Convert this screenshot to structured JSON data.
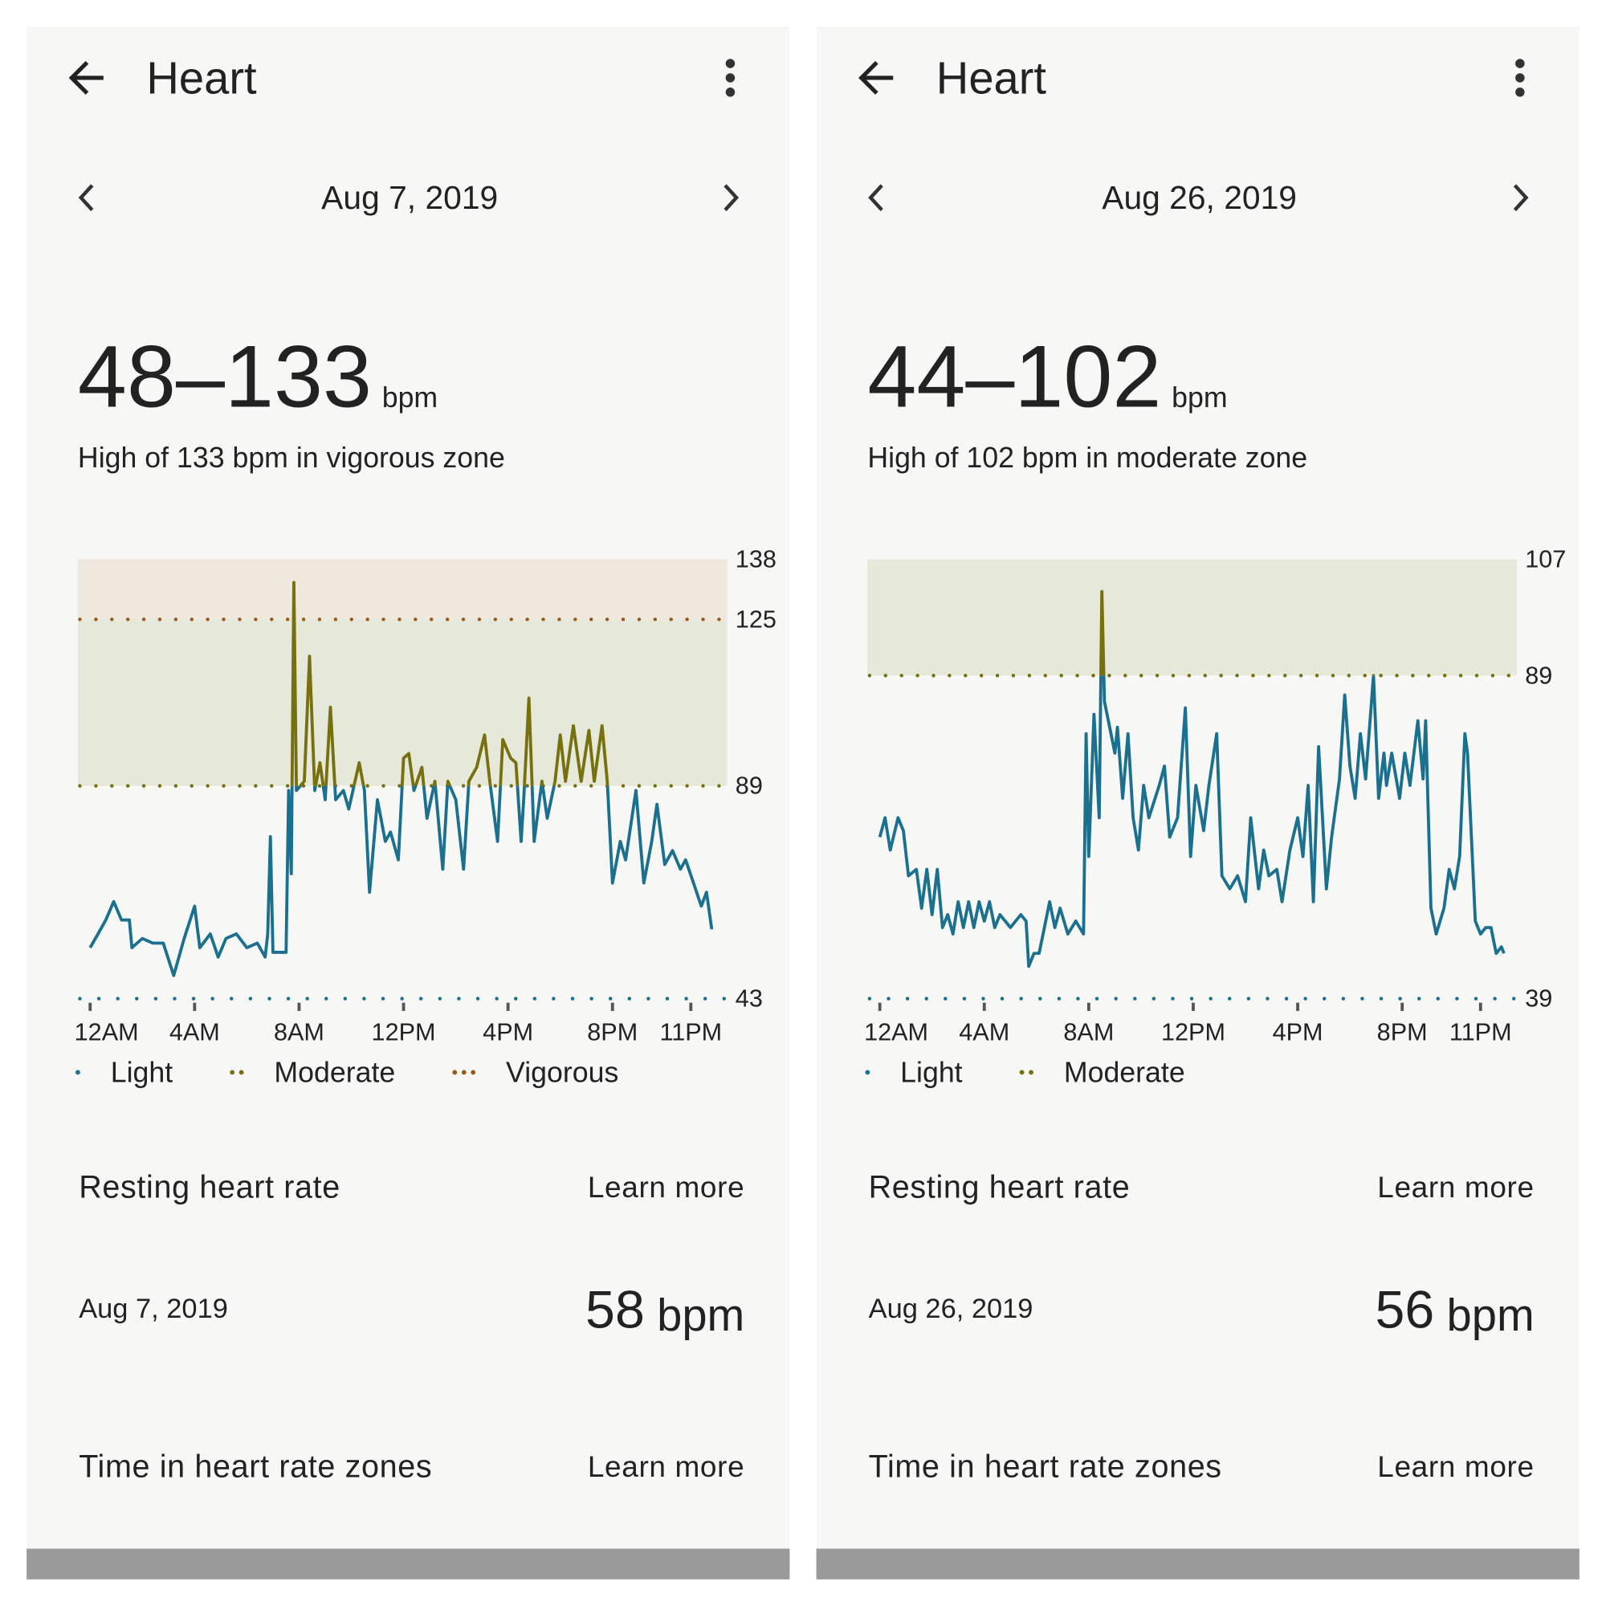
{
  "screens": [
    {
      "title": "Heart",
      "date": "Aug 7, 2019",
      "range": "48–133",
      "unit": "bpm",
      "summary": "High of 133 bpm in vigorous zone",
      "chart_data": {
        "type": "line",
        "color": "#1b6f8f",
        "grid": false,
        "x": [
          0,
          0.3,
          0.6,
          0.9,
          1.2,
          1.5,
          1.6,
          2.0,
          2.4,
          2.8,
          3.2,
          3.6,
          4.0,
          4.2,
          4.6,
          4.9,
          5.2,
          5.6,
          6.0,
          6.4,
          6.7,
          6.8,
          6.9,
          7.0,
          7.5,
          7.6,
          7.7,
          7.8,
          7.9,
          8.2,
          8.4,
          8.6,
          8.8,
          9.0,
          9.2,
          9.4,
          9.7,
          9.9,
          10.3,
          10.5,
          10.7,
          11.0,
          11.3,
          11.5,
          11.8,
          12.0,
          12.2,
          12.4,
          12.7,
          12.9,
          13.2,
          13.5,
          13.7,
          14.0,
          14.3,
          14.5,
          14.8,
          15.1,
          15.3,
          15.6,
          15.8,
          16.1,
          16.3,
          16.5,
          16.6,
          16.8,
          17.0,
          17.3,
          17.5,
          17.8,
          18.0,
          18.2,
          18.5,
          18.8,
          19.1,
          19.3,
          19.6,
          19.8,
          20.0,
          20.3,
          20.5,
          20.9,
          21.2,
          21.5,
          21.7,
          22.0,
          22.3,
          22.6,
          22.8,
          23.1,
          23.4,
          23.6,
          23.8
        ],
        "values": [
          54,
          57,
          60,
          64,
          60,
          60,
          54,
          56,
          55,
          55,
          48,
          56,
          63,
          54,
          57,
          52,
          56,
          57,
          54,
          55,
          52,
          57,
          78,
          53,
          53,
          88,
          70,
          133,
          88,
          90,
          117,
          88,
          94,
          86,
          106,
          86,
          88,
          84,
          94,
          88,
          66,
          86,
          77,
          79,
          73,
          95,
          96,
          88,
          93,
          82,
          90,
          71,
          90,
          86,
          71,
          90,
          93,
          100,
          90,
          77,
          99,
          95,
          94,
          77,
          86,
          108,
          77,
          90,
          82,
          90,
          100,
          90,
          102,
          90,
          101,
          90,
          102,
          90,
          68,
          77,
          73,
          88,
          68,
          77,
          85,
          72,
          75,
          71,
          73,
          68,
          63,
          66,
          58
        ],
        "xlim": [
          0,
          24
        ],
        "xticks": [
          {
            "value": 0,
            "label": "12AM"
          },
          {
            "value": 4,
            "label": "4AM"
          },
          {
            "value": 8,
            "label": "8AM"
          },
          {
            "value": 12,
            "label": "12PM"
          },
          {
            "value": 16,
            "label": "4PM"
          },
          {
            "value": 20,
            "label": "8PM"
          },
          {
            "value": 23,
            "label": "11PM"
          }
        ],
        "ylim": [
          43,
          138
        ],
        "yticks": [
          43,
          89,
          125,
          138
        ],
        "zones": [
          {
            "name": "Light",
            "color": "#1b6f8f"
          },
          {
            "name": "Moderate",
            "value": 89,
            "color": "#77700f",
            "band": "#e6e8da"
          },
          {
            "name": "Vigorous",
            "value": 125,
            "color": "#9a5a1c",
            "band": "#eee8dd"
          }
        ]
      },
      "resting": {
        "title": "Resting heart rate",
        "link": "Learn more",
        "date": "Aug 7, 2019",
        "value": 58,
        "unit": "bpm"
      },
      "zone_time": {
        "title": "Time in heart rate zones",
        "link": "Learn more"
      }
    },
    {
      "title": "Heart",
      "date": "Aug 26, 2019",
      "range": "44–102",
      "unit": "bpm",
      "summary": "High of 102 bpm in moderate zone",
      "chart_data": {
        "type": "line",
        "color": "#1b6f8f",
        "grid": false,
        "x": [
          0.0,
          0.2,
          0.4,
          0.7,
          0.9,
          1.1,
          1.4,
          1.6,
          1.8,
          2.0,
          2.2,
          2.4,
          2.6,
          2.8,
          3.0,
          3.2,
          3.4,
          3.6,
          3.8,
          4.0,
          4.2,
          4.4,
          4.6,
          5.0,
          5.4,
          5.6,
          5.7,
          5.9,
          6.1,
          6.3,
          6.5,
          6.7,
          6.9,
          7.2,
          7.5,
          7.8,
          7.9,
          8.0,
          8.2,
          8.4,
          8.5,
          8.6,
          8.8,
          9.0,
          9.1,
          9.3,
          9.5,
          9.7,
          9.9,
          10.1,
          10.3,
          10.7,
          10.9,
          11.1,
          11.4,
          11.7,
          11.9,
          12.1,
          12.4,
          12.6,
          12.9,
          13.1,
          13.4,
          13.7,
          14.0,
          14.2,
          14.5,
          14.7,
          14.9,
          15.2,
          15.4,
          15.7,
          16.0,
          16.2,
          16.4,
          16.6,
          16.8,
          17.1,
          17.3,
          17.6,
          17.8,
          18.0,
          18.2,
          18.4,
          18.6,
          18.9,
          19.1,
          19.3,
          19.4,
          19.6,
          19.9,
          20.1,
          20.3,
          20.6,
          20.8,
          20.9,
          21.1,
          21.3,
          21.6,
          21.8,
          22.0,
          22.2,
          22.4,
          22.5,
          22.8,
          23.0,
          23.2,
          23.4,
          23.6,
          23.8,
          23.9
        ],
        "values": [
          64,
          67,
          62,
          67,
          65,
          58,
          59,
          53,
          59,
          52,
          59,
          50,
          52,
          49,
          54,
          50,
          54,
          50,
          54,
          51,
          54,
          50,
          52,
          50,
          52,
          51,
          44,
          46,
          46,
          50,
          54,
          50,
          53,
          49,
          51,
          49,
          80,
          61,
          83,
          67,
          102,
          85,
          81,
          77,
          81,
          70,
          80,
          67,
          62,
          72,
          67,
          72,
          75,
          64,
          67,
          84,
          61,
          72,
          65,
          72,
          80,
          58,
          56,
          58,
          54,
          67,
          56,
          62,
          58,
          59,
          54,
          62,
          67,
          61,
          72,
          54,
          78,
          56,
          64,
          73,
          86,
          75,
          70,
          80,
          73,
          89,
          70,
          77,
          72,
          77,
          70,
          77,
          72,
          82,
          73,
          82,
          53,
          49,
          53,
          59,
          56,
          61,
          80,
          77,
          51,
          49,
          50,
          50,
          46,
          47,
          46
        ],
        "xlim": [
          0,
          24
        ],
        "xticks": [
          {
            "value": 0,
            "label": "12AM"
          },
          {
            "value": 4,
            "label": "4AM"
          },
          {
            "value": 8,
            "label": "8AM"
          },
          {
            "value": 12,
            "label": "12PM"
          },
          {
            "value": 16,
            "label": "4PM"
          },
          {
            "value": 20,
            "label": "8PM"
          },
          {
            "value": 23,
            "label": "11PM"
          }
        ],
        "ylim": [
          39,
          107
        ],
        "yticks": [
          39,
          89,
          107
        ],
        "zones": [
          {
            "name": "Light",
            "color": "#1b6f8f"
          },
          {
            "name": "Moderate",
            "value": 89,
            "color": "#77700f",
            "band": "#e6e8da"
          }
        ]
      },
      "resting": {
        "title": "Resting heart rate",
        "link": "Learn more",
        "date": "Aug 26, 2019",
        "value": 56,
        "unit": "bpm"
      },
      "zone_time": {
        "title": "Time in heart rate zones",
        "link": "Learn more"
      }
    }
  ]
}
